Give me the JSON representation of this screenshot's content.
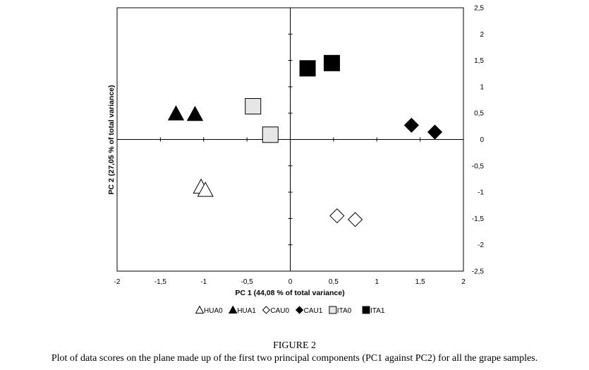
{
  "chart_data": {
    "type": "scatter",
    "xlabel": "PC 1 (44,08 % of total variance)",
    "ylabel": "PC 2 (27,05 % of total variance)",
    "xlim": [
      -2,
      2
    ],
    "ylim": [
      -2.5,
      2.5
    ],
    "x_ticks": [
      -2,
      -1.5,
      -1,
      -0.5,
      0,
      0.5,
      1,
      1.5,
      2
    ],
    "x_tick_labels": [
      "-2",
      "-1,5",
      "-1",
      "-0,5",
      "0",
      "0,5",
      "1",
      "1,5",
      "2"
    ],
    "y_ticks": [
      2.5,
      2,
      1.5,
      1,
      0.5,
      0,
      -0.5,
      -1,
      -1.5,
      -2,
      -2.5
    ],
    "y_tick_labels": [
      "2,5",
      "2",
      "1,5",
      "1",
      "0,5",
      "0",
      "-0,5",
      "-1",
      "-1,5",
      "-2",
      "-2,5"
    ],
    "grid": false,
    "legend_position": "bottom-center",
    "series": [
      {
        "name": "HUA0",
        "marker": "triangle-open",
        "points": [
          [
            -1.03,
            -0.9
          ],
          [
            -0.98,
            -0.96
          ]
        ]
      },
      {
        "name": "HUA1",
        "marker": "triangle-filled",
        "points": [
          [
            -1.32,
            0.49
          ],
          [
            -1.1,
            0.48
          ]
        ]
      },
      {
        "name": "CAU0",
        "marker": "diamond-open",
        "points": [
          [
            0.54,
            -1.45
          ],
          [
            0.75,
            -1.52
          ]
        ]
      },
      {
        "name": "CAU1",
        "marker": "diamond-filled",
        "points": [
          [
            1.4,
            0.27
          ],
          [
            1.67,
            0.14
          ]
        ]
      },
      {
        "name": "ITA0",
        "marker": "square-open",
        "points": [
          [
            -0.43,
            0.63
          ],
          [
            -0.23,
            0.09
          ]
        ]
      },
      {
        "name": "ITA1",
        "marker": "square-filled",
        "points": [
          [
            0.2,
            1.35
          ],
          [
            0.48,
            1.45
          ]
        ]
      }
    ]
  },
  "caption": {
    "figure_label": "FIGURE 2",
    "text": "Plot of data scores on the plane made up of the first two principal components (PC1 against PC2) for all the grape samples."
  }
}
